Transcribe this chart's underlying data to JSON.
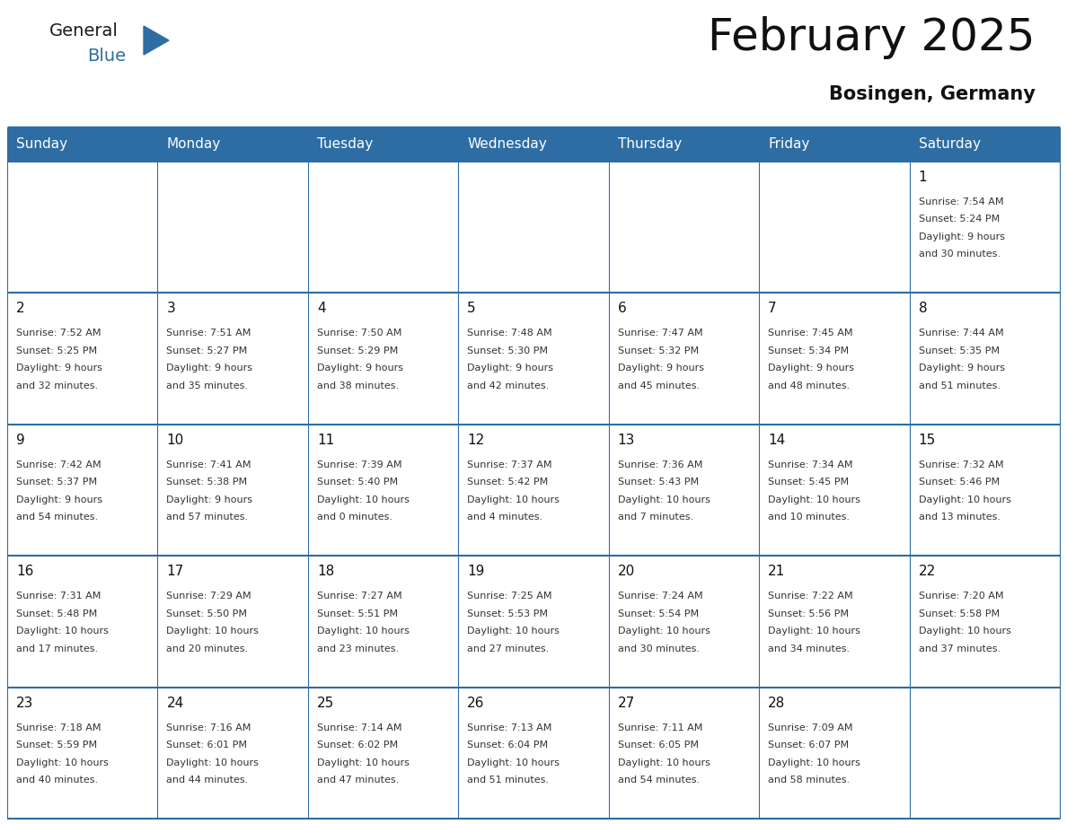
{
  "title": "February 2025",
  "subtitle": "Bosingen, Germany",
  "header_bg": "#2E6DA4",
  "header_text_color": "#FFFFFF",
  "cell_bg": "#FFFFFF",
  "border_color": "#2E6DA4",
  "days_of_week": [
    "Sunday",
    "Monday",
    "Tuesday",
    "Wednesday",
    "Thursday",
    "Friday",
    "Saturday"
  ],
  "num_cols": 7,
  "num_rows": 5,
  "calendar_data": [
    [
      null,
      null,
      null,
      null,
      null,
      null,
      {
        "day": "1",
        "sunrise": "7:54 AM",
        "sunset": "5:24 PM",
        "daylight_line1": "9 hours",
        "daylight_line2": "and 30 minutes."
      }
    ],
    [
      {
        "day": "2",
        "sunrise": "7:52 AM",
        "sunset": "5:25 PM",
        "daylight_line1": "9 hours",
        "daylight_line2": "and 32 minutes."
      },
      {
        "day": "3",
        "sunrise": "7:51 AM",
        "sunset": "5:27 PM",
        "daylight_line1": "9 hours",
        "daylight_line2": "and 35 minutes."
      },
      {
        "day": "4",
        "sunrise": "7:50 AM",
        "sunset": "5:29 PM",
        "daylight_line1": "9 hours",
        "daylight_line2": "and 38 minutes."
      },
      {
        "day": "5",
        "sunrise": "7:48 AM",
        "sunset": "5:30 PM",
        "daylight_line1": "9 hours",
        "daylight_line2": "and 42 minutes."
      },
      {
        "day": "6",
        "sunrise": "7:47 AM",
        "sunset": "5:32 PM",
        "daylight_line1": "9 hours",
        "daylight_line2": "and 45 minutes."
      },
      {
        "day": "7",
        "sunrise": "7:45 AM",
        "sunset": "5:34 PM",
        "daylight_line1": "9 hours",
        "daylight_line2": "and 48 minutes."
      },
      {
        "day": "8",
        "sunrise": "7:44 AM",
        "sunset": "5:35 PM",
        "daylight_line1": "9 hours",
        "daylight_line2": "and 51 minutes."
      }
    ],
    [
      {
        "day": "9",
        "sunrise": "7:42 AM",
        "sunset": "5:37 PM",
        "daylight_line1": "9 hours",
        "daylight_line2": "and 54 minutes."
      },
      {
        "day": "10",
        "sunrise": "7:41 AM",
        "sunset": "5:38 PM",
        "daylight_line1": "9 hours",
        "daylight_line2": "and 57 minutes."
      },
      {
        "day": "11",
        "sunrise": "7:39 AM",
        "sunset": "5:40 PM",
        "daylight_line1": "10 hours",
        "daylight_line2": "and 0 minutes."
      },
      {
        "day": "12",
        "sunrise": "7:37 AM",
        "sunset": "5:42 PM",
        "daylight_line1": "10 hours",
        "daylight_line2": "and 4 minutes."
      },
      {
        "day": "13",
        "sunrise": "7:36 AM",
        "sunset": "5:43 PM",
        "daylight_line1": "10 hours",
        "daylight_line2": "and 7 minutes."
      },
      {
        "day": "14",
        "sunrise": "7:34 AM",
        "sunset": "5:45 PM",
        "daylight_line1": "10 hours",
        "daylight_line2": "and 10 minutes."
      },
      {
        "day": "15",
        "sunrise": "7:32 AM",
        "sunset": "5:46 PM",
        "daylight_line1": "10 hours",
        "daylight_line2": "and 13 minutes."
      }
    ],
    [
      {
        "day": "16",
        "sunrise": "7:31 AM",
        "sunset": "5:48 PM",
        "daylight_line1": "10 hours",
        "daylight_line2": "and 17 minutes."
      },
      {
        "day": "17",
        "sunrise": "7:29 AM",
        "sunset": "5:50 PM",
        "daylight_line1": "10 hours",
        "daylight_line2": "and 20 minutes."
      },
      {
        "day": "18",
        "sunrise": "7:27 AM",
        "sunset": "5:51 PM",
        "daylight_line1": "10 hours",
        "daylight_line2": "and 23 minutes."
      },
      {
        "day": "19",
        "sunrise": "7:25 AM",
        "sunset": "5:53 PM",
        "daylight_line1": "10 hours",
        "daylight_line2": "and 27 minutes."
      },
      {
        "day": "20",
        "sunrise": "7:24 AM",
        "sunset": "5:54 PM",
        "daylight_line1": "10 hours",
        "daylight_line2": "and 30 minutes."
      },
      {
        "day": "21",
        "sunrise": "7:22 AM",
        "sunset": "5:56 PM",
        "daylight_line1": "10 hours",
        "daylight_line2": "and 34 minutes."
      },
      {
        "day": "22",
        "sunrise": "7:20 AM",
        "sunset": "5:58 PM",
        "daylight_line1": "10 hours",
        "daylight_line2": "and 37 minutes."
      }
    ],
    [
      {
        "day": "23",
        "sunrise": "7:18 AM",
        "sunset": "5:59 PM",
        "daylight_line1": "10 hours",
        "daylight_line2": "and 40 minutes."
      },
      {
        "day": "24",
        "sunrise": "7:16 AM",
        "sunset": "6:01 PM",
        "daylight_line1": "10 hours",
        "daylight_line2": "and 44 minutes."
      },
      {
        "day": "25",
        "sunrise": "7:14 AM",
        "sunset": "6:02 PM",
        "daylight_line1": "10 hours",
        "daylight_line2": "and 47 minutes."
      },
      {
        "day": "26",
        "sunrise": "7:13 AM",
        "sunset": "6:04 PM",
        "daylight_line1": "10 hours",
        "daylight_line2": "and 51 minutes."
      },
      {
        "day": "27",
        "sunrise": "7:11 AM",
        "sunset": "6:05 PM",
        "daylight_line1": "10 hours",
        "daylight_line2": "and 54 minutes."
      },
      {
        "day": "28",
        "sunrise": "7:09 AM",
        "sunset": "6:07 PM",
        "daylight_line1": "10 hours",
        "daylight_line2": "and 58 minutes."
      },
      null
    ]
  ],
  "logo_text1": "General",
  "logo_text2": "Blue",
  "logo_color1": "#1a1a1a",
  "logo_color2": "#2E6DA4",
  "title_fontsize": 36,
  "subtitle_fontsize": 15,
  "header_fontsize": 11,
  "day_num_fontsize": 11,
  "cell_text_fontsize": 8
}
